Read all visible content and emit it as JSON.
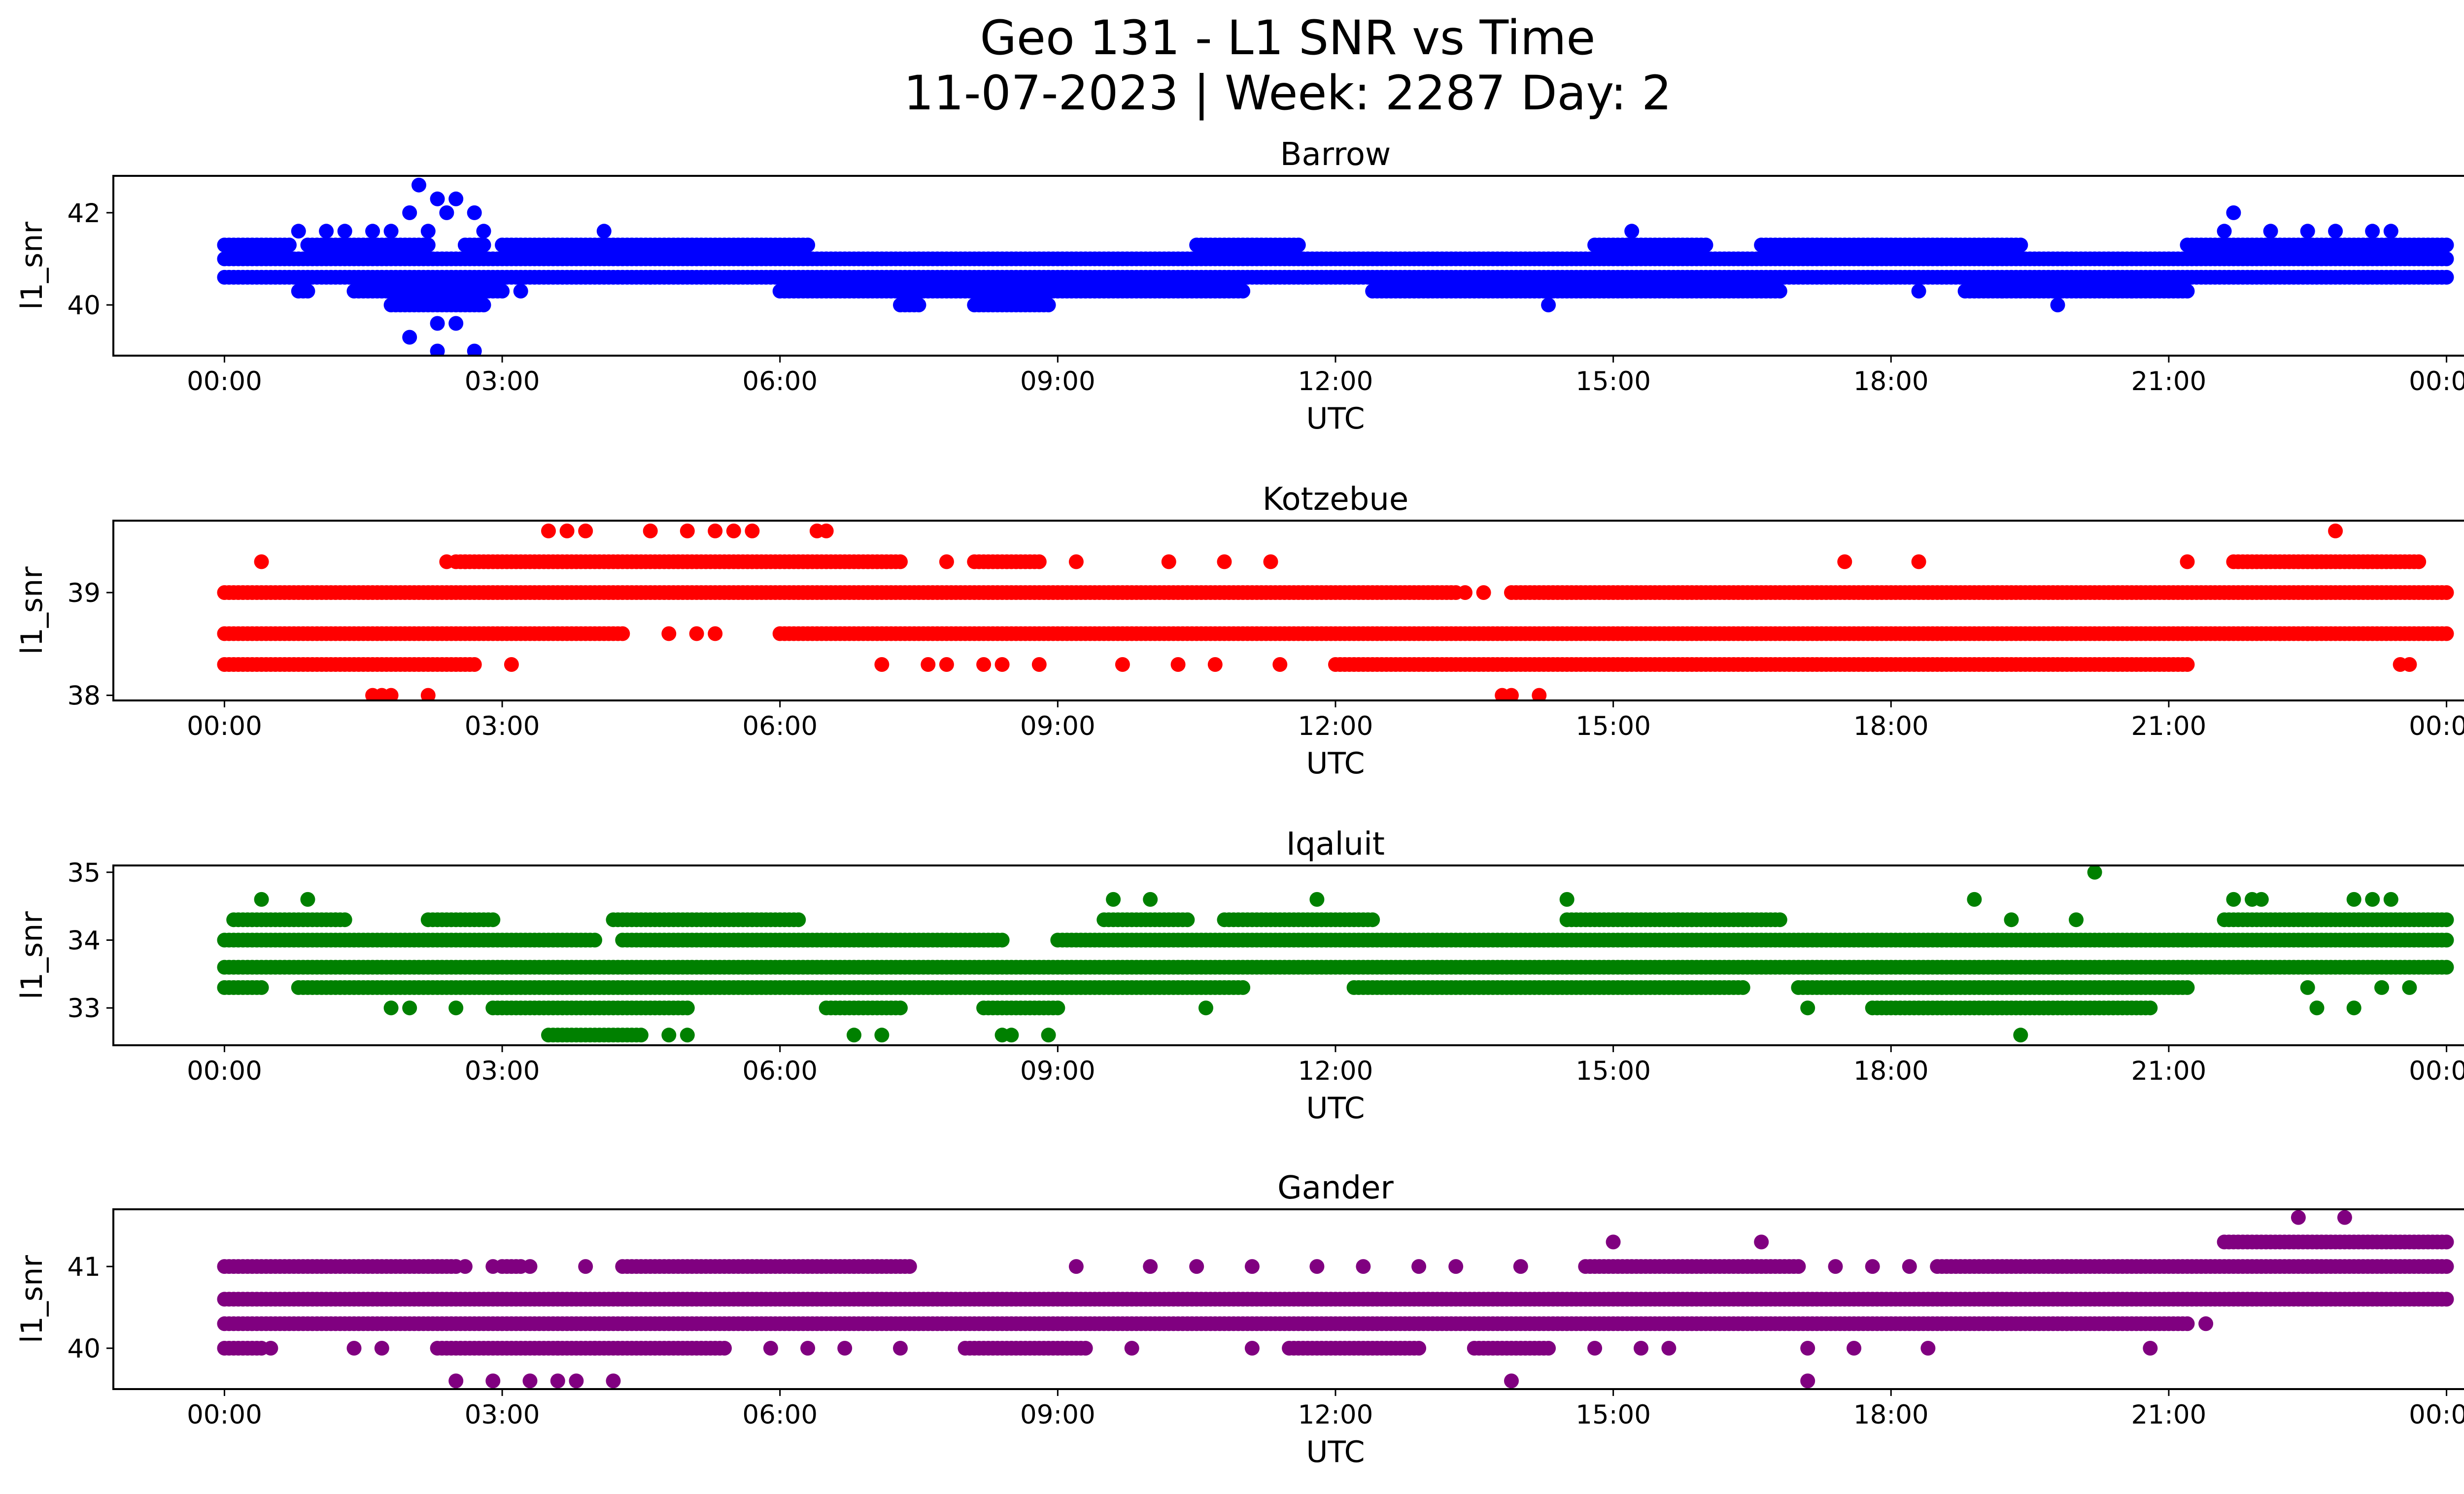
{
  "figure": {
    "title_line1": "Geo 131 - L1 SNR vs Time",
    "title_line2": "11-07-2023 | Week: 2287 Day: 2"
  },
  "chart_data": [
    {
      "type": "scatter",
      "title": "Barrow",
      "xlabel": "UTC",
      "ylabel": "l1_snr",
      "color": "#0000ff",
      "xlim": [
        0,
        24
      ],
      "ylim": [
        38.9,
        42.8
      ],
      "xtick_labels": [
        "00:00",
        "03:00",
        "06:00",
        "09:00",
        "12:00",
        "15:00",
        "18:00",
        "21:00",
        "00:00"
      ],
      "yticks": [
        40,
        42
      ],
      "levels": [
        {
          "y": 41.3,
          "ranges": [
            [
              0.0,
              0.7
            ],
            [
              0.9,
              2.2
            ],
            [
              2.6,
              2.8
            ],
            [
              3.0,
              6.3
            ],
            [
              10.5,
              11.6
            ],
            [
              14.8,
              16.0
            ],
            [
              16.6,
              19.4
            ],
            [
              21.2,
              24.0
            ]
          ]
        },
        {
          "y": 41.0,
          "ranges": [
            [
              0.0,
              24.0
            ]
          ]
        },
        {
          "y": 40.6,
          "ranges": [
            [
              0.0,
              24.0
            ]
          ]
        },
        {
          "y": 40.3,
          "ranges": [
            [
              0.8,
              0.9
            ],
            [
              1.4,
              3.0
            ],
            [
              6.0,
              11.0
            ],
            [
              12.4,
              16.8
            ],
            [
              18.8,
              21.2
            ]
          ]
        },
        {
          "y": 40.0,
          "ranges": [
            [
              1.8,
              2.8
            ],
            [
              7.3,
              7.5
            ],
            [
              8.1,
              8.9
            ]
          ]
        }
      ],
      "points": [
        {
          "x": 0.8,
          "y": 41.6
        },
        {
          "x": 1.1,
          "y": 41.6
        },
        {
          "x": 1.3,
          "y": 41.6
        },
        {
          "x": 1.6,
          "y": 41.6
        },
        {
          "x": 1.8,
          "y": 41.6
        },
        {
          "x": 2.0,
          "y": 42.0
        },
        {
          "x": 2.1,
          "y": 42.6
        },
        {
          "x": 2.3,
          "y": 42.3
        },
        {
          "x": 2.4,
          "y": 42.0
        },
        {
          "x": 2.5,
          "y": 42.3
        },
        {
          "x": 2.7,
          "y": 42.0
        },
        {
          "x": 2.8,
          "y": 41.6
        },
        {
          "x": 2.2,
          "y": 41.6
        },
        {
          "x": 4.1,
          "y": 41.6
        },
        {
          "x": 4.6,
          "y": 40.6
        },
        {
          "x": 3.2,
          "y": 40.3
        },
        {
          "x": 2.0,
          "y": 39.3
        },
        {
          "x": 2.3,
          "y": 39.6
        },
        {
          "x": 2.3,
          "y": 39.0
        },
        {
          "x": 2.7,
          "y": 39.0
        },
        {
          "x": 2.5,
          "y": 39.6
        },
        {
          "x": 15.2,
          "y": 41.6
        },
        {
          "x": 21.7,
          "y": 42.0
        },
        {
          "x": 21.6,
          "y": 41.6
        },
        {
          "x": 22.1,
          "y": 41.6
        },
        {
          "x": 22.5,
          "y": 41.6
        },
        {
          "x": 22.8,
          "y": 41.6
        },
        {
          "x": 23.2,
          "y": 41.6
        },
        {
          "x": 23.4,
          "y": 41.6
        },
        {
          "x": 14.3,
          "y": 40.0
        },
        {
          "x": 19.8,
          "y": 40.0
        },
        {
          "x": 18.3,
          "y": 40.3
        },
        {
          "x": 19.2,
          "y": 40.3
        },
        {
          "x": 20.6,
          "y": 40.3
        }
      ]
    },
    {
      "type": "scatter",
      "title": "Kotzebue",
      "xlabel": "UTC",
      "ylabel": "l1_snr",
      "color": "#ff0000",
      "xlim": [
        0,
        24
      ],
      "ylim": [
        37.95,
        39.7
      ],
      "xtick_labels": [
        "00:00",
        "03:00",
        "06:00",
        "09:00",
        "12:00",
        "15:00",
        "18:00",
        "21:00",
        "00:00"
      ],
      "yticks": [
        38,
        39
      ],
      "levels": [
        {
          "y": 39.3,
          "ranges": [
            [
              2.5,
              7.3
            ],
            [
              8.1,
              8.8
            ],
            [
              21.7,
              23.7
            ]
          ]
        },
        {
          "y": 39.0,
          "ranges": [
            [
              0.0,
              13.3
            ],
            [
              13.9,
              24.0
            ]
          ]
        },
        {
          "y": 38.6,
          "ranges": [
            [
              0.0,
              4.3
            ],
            [
              6.0,
              24.0
            ]
          ]
        },
        {
          "y": 38.3,
          "ranges": [
            [
              0.0,
              2.7
            ],
            [
              12.0,
              21.2
            ]
          ]
        }
      ],
      "points": [
        {
          "x": 0.4,
          "y": 39.3
        },
        {
          "x": 2.4,
          "y": 39.3
        },
        {
          "x": 2.6,
          "y": 39.3
        },
        {
          "x": 7.8,
          "y": 39.3
        },
        {
          "x": 9.2,
          "y": 39.3
        },
        {
          "x": 10.2,
          "y": 39.3
        },
        {
          "x": 10.8,
          "y": 39.3
        },
        {
          "x": 11.3,
          "y": 39.3
        },
        {
          "x": 17.5,
          "y": 39.3
        },
        {
          "x": 18.3,
          "y": 39.3
        },
        {
          "x": 21.2,
          "y": 39.3
        },
        {
          "x": 3.5,
          "y": 39.6
        },
        {
          "x": 3.7,
          "y": 39.6
        },
        {
          "x": 3.9,
          "y": 39.6
        },
        {
          "x": 4.6,
          "y": 39.6
        },
        {
          "x": 5.0,
          "y": 39.6
        },
        {
          "x": 5.3,
          "y": 39.6
        },
        {
          "x": 5.5,
          "y": 39.6
        },
        {
          "x": 5.7,
          "y": 39.6
        },
        {
          "x": 6.4,
          "y": 39.6
        },
        {
          "x": 6.5,
          "y": 39.6
        },
        {
          "x": 22.8,
          "y": 39.6
        },
        {
          "x": 13.4,
          "y": 39.0
        },
        {
          "x": 13.6,
          "y": 39.0
        },
        {
          "x": 4.8,
          "y": 38.6
        },
        {
          "x": 5.1,
          "y": 38.6
        },
        {
          "x": 5.3,
          "y": 38.6
        },
        {
          "x": 22.2,
          "y": 38.6
        },
        {
          "x": 22.5,
          "y": 38.6
        },
        {
          "x": 3.1,
          "y": 38.3
        },
        {
          "x": 7.1,
          "y": 38.3
        },
        {
          "x": 7.6,
          "y": 38.3
        },
        {
          "x": 7.8,
          "y": 38.3
        },
        {
          "x": 8.2,
          "y": 38.3
        },
        {
          "x": 8.4,
          "y": 38.3
        },
        {
          "x": 8.8,
          "y": 38.3
        },
        {
          "x": 9.7,
          "y": 38.3
        },
        {
          "x": 10.3,
          "y": 38.3
        },
        {
          "x": 10.7,
          "y": 38.3
        },
        {
          "x": 11.4,
          "y": 38.3
        },
        {
          "x": 23.5,
          "y": 38.3
        },
        {
          "x": 23.6,
          "y": 38.3
        },
        {
          "x": 1.6,
          "y": 38.0
        },
        {
          "x": 1.7,
          "y": 38.0
        },
        {
          "x": 1.8,
          "y": 38.0
        },
        {
          "x": 2.2,
          "y": 38.0
        },
        {
          "x": 13.8,
          "y": 38.0
        },
        {
          "x": 13.9,
          "y": 38.0
        },
        {
          "x": 14.2,
          "y": 38.0
        }
      ]
    },
    {
      "type": "scatter",
      "title": "Iqaluit",
      "xlabel": "UTC",
      "ylabel": "l1_snr",
      "color": "#008000",
      "xlim": [
        0,
        24
      ],
      "ylim": [
        32.45,
        35.1
      ],
      "xtick_labels": [
        "00:00",
        "03:00",
        "06:00",
        "09:00",
        "12:00",
        "15:00",
        "18:00",
        "21:00",
        "00:00"
      ],
      "yticks": [
        33,
        34,
        35
      ],
      "levels": [
        {
          "y": 34.3,
          "ranges": [
            [
              0.1,
              1.3
            ],
            [
              2.2,
              2.9
            ],
            [
              4.2,
              6.2
            ],
            [
              9.5,
              10.4
            ],
            [
              10.8,
              12.4
            ],
            [
              14.5,
              15.7
            ],
            [
              15.7,
              16.8
            ],
            [
              21.6,
              24.0
            ]
          ]
        },
        {
          "y": 34.0,
          "ranges": [
            [
              0.0,
              4.0
            ],
            [
              4.3,
              8.4
            ],
            [
              9.0,
              24.0
            ]
          ]
        },
        {
          "y": 33.6,
          "ranges": [
            [
              0.0,
              24.0
            ]
          ]
        },
        {
          "y": 33.3,
          "ranges": [
            [
              0.0,
              0.4
            ],
            [
              0.8,
              11.0
            ],
            [
              12.2,
              16.4
            ],
            [
              17.0,
              21.2
            ]
          ]
        },
        {
          "y": 33.0,
          "ranges": [
            [
              2.9,
              5.0
            ],
            [
              6.5,
              7.3
            ],
            [
              8.2,
              9.0
            ],
            [
              17.8,
              20.8
            ]
          ]
        },
        {
          "y": 32.6,
          "ranges": [
            [
              3.5,
              4.5
            ]
          ]
        }
      ],
      "points": [
        {
          "x": 0.4,
          "y": 34.6
        },
        {
          "x": 0.9,
          "y": 34.6
        },
        {
          "x": 9.6,
          "y": 34.6
        },
        {
          "x": 10.0,
          "y": 34.6
        },
        {
          "x": 11.8,
          "y": 34.6
        },
        {
          "x": 14.5,
          "y": 34.6
        },
        {
          "x": 18.9,
          "y": 34.6
        },
        {
          "x": 21.7,
          "y": 34.6
        },
        {
          "x": 21.9,
          "y": 34.6
        },
        {
          "x": 22.0,
          "y": 34.6
        },
        {
          "x": 23.0,
          "y": 34.6
        },
        {
          "x": 23.2,
          "y": 34.6
        },
        {
          "x": 23.4,
          "y": 34.6
        },
        {
          "x": 20.2,
          "y": 35.0
        },
        {
          "x": 1.2,
          "y": 34.3
        },
        {
          "x": 19.3,
          "y": 34.3
        },
        {
          "x": 20.0,
          "y": 34.3
        },
        {
          "x": 1.8,
          "y": 33.0
        },
        {
          "x": 2.0,
          "y": 33.0
        },
        {
          "x": 2.5,
          "y": 33.0
        },
        {
          "x": 10.6,
          "y": 33.0
        },
        {
          "x": 17.1,
          "y": 33.0
        },
        {
          "x": 22.6,
          "y": 33.0
        },
        {
          "x": 23.0,
          "y": 33.0
        },
        {
          "x": 4.8,
          "y": 32.6
        },
        {
          "x": 5.0,
          "y": 32.6
        },
        {
          "x": 6.8,
          "y": 32.6
        },
        {
          "x": 7.1,
          "y": 32.6
        },
        {
          "x": 8.4,
          "y": 32.6
        },
        {
          "x": 8.5,
          "y": 32.6
        },
        {
          "x": 8.9,
          "y": 32.6
        },
        {
          "x": 19.4,
          "y": 32.6
        },
        {
          "x": 22.5,
          "y": 33.3
        },
        {
          "x": 23.3,
          "y": 33.3
        },
        {
          "x": 23.6,
          "y": 33.3
        }
      ]
    },
    {
      "type": "scatter",
      "title": "Gander",
      "xlabel": "UTC",
      "ylabel": "l1_snr",
      "color": "#800080",
      "xlim": [
        0,
        24
      ],
      "ylim": [
        39.5,
        41.7
      ],
      "xtick_labels": [
        "00:00",
        "03:00",
        "06:00",
        "09:00",
        "12:00",
        "15:00",
        "18:00",
        "21:00",
        "00:00"
      ],
      "yticks": [
        40,
        41
      ],
      "levels": [
        {
          "y": 41.3,
          "ranges": [
            [
              21.6,
              24.0
            ]
          ]
        },
        {
          "y": 41.0,
          "ranges": [
            [
              0.0,
              2.5
            ],
            [
              3.0,
              3.2
            ],
            [
              4.3,
              6.8
            ],
            [
              6.8,
              7.4
            ],
            [
              14.7,
              17.0
            ],
            [
              18.5,
              24.0
            ]
          ]
        },
        {
          "y": 40.6,
          "ranges": [
            [
              0.0,
              24.0
            ]
          ]
        },
        {
          "y": 40.3,
          "ranges": [
            [
              0.0,
              21.2
            ]
          ]
        },
        {
          "y": 40.0,
          "ranges": [
            [
              0.0,
              0.4
            ],
            [
              2.3,
              5.4
            ],
            [
              8.0,
              9.3
            ],
            [
              11.5,
              12.9
            ],
            [
              13.5,
              14.3
            ]
          ]
        }
      ],
      "points": [
        {
          "x": 2.6,
          "y": 41.0
        },
        {
          "x": 2.9,
          "y": 41.0
        },
        {
          "x": 3.3,
          "y": 41.0
        },
        {
          "x": 3.9,
          "y": 41.0
        },
        {
          "x": 9.2,
          "y": 41.0
        },
        {
          "x": 10.0,
          "y": 41.0
        },
        {
          "x": 10.5,
          "y": 41.0
        },
        {
          "x": 11.1,
          "y": 41.0
        },
        {
          "x": 11.8,
          "y": 41.0
        },
        {
          "x": 12.3,
          "y": 41.0
        },
        {
          "x": 12.9,
          "y": 41.0
        },
        {
          "x": 13.3,
          "y": 41.0
        },
        {
          "x": 14.0,
          "y": 41.0
        },
        {
          "x": 17.4,
          "y": 41.0
        },
        {
          "x": 17.8,
          "y": 41.0
        },
        {
          "x": 18.2,
          "y": 41.0
        },
        {
          "x": 15.0,
          "y": 41.3
        },
        {
          "x": 16.6,
          "y": 41.3
        },
        {
          "x": 22.4,
          "y": 41.6
        },
        {
          "x": 22.9,
          "y": 41.6
        },
        {
          "x": 21.4,
          "y": 40.3
        },
        {
          "x": 0.5,
          "y": 40.0
        },
        {
          "x": 1.4,
          "y": 40.0
        },
        {
          "x": 1.7,
          "y": 40.0
        },
        {
          "x": 5.9,
          "y": 40.0
        },
        {
          "x": 6.3,
          "y": 40.0
        },
        {
          "x": 6.7,
          "y": 40.0
        },
        {
          "x": 7.3,
          "y": 40.0
        },
        {
          "x": 9.8,
          "y": 40.0
        },
        {
          "x": 11.1,
          "y": 40.0
        },
        {
          "x": 14.8,
          "y": 40.0
        },
        {
          "x": 15.3,
          "y": 40.0
        },
        {
          "x": 15.6,
          "y": 40.0
        },
        {
          "x": 17.1,
          "y": 40.0
        },
        {
          "x": 17.6,
          "y": 40.0
        },
        {
          "x": 18.4,
          "y": 40.0
        },
        {
          "x": 20.8,
          "y": 40.0
        },
        {
          "x": 2.5,
          "y": 39.6
        },
        {
          "x": 2.9,
          "y": 39.6
        },
        {
          "x": 3.3,
          "y": 39.6
        },
        {
          "x": 3.6,
          "y": 39.6
        },
        {
          "x": 3.8,
          "y": 39.6
        },
        {
          "x": 4.2,
          "y": 39.6
        },
        {
          "x": 13.9,
          "y": 39.6
        },
        {
          "x": 17.1,
          "y": 39.6
        },
        {
          "x": 3.6,
          "y": 40.0
        },
        {
          "x": 4.0,
          "y": 40.0
        }
      ]
    }
  ]
}
